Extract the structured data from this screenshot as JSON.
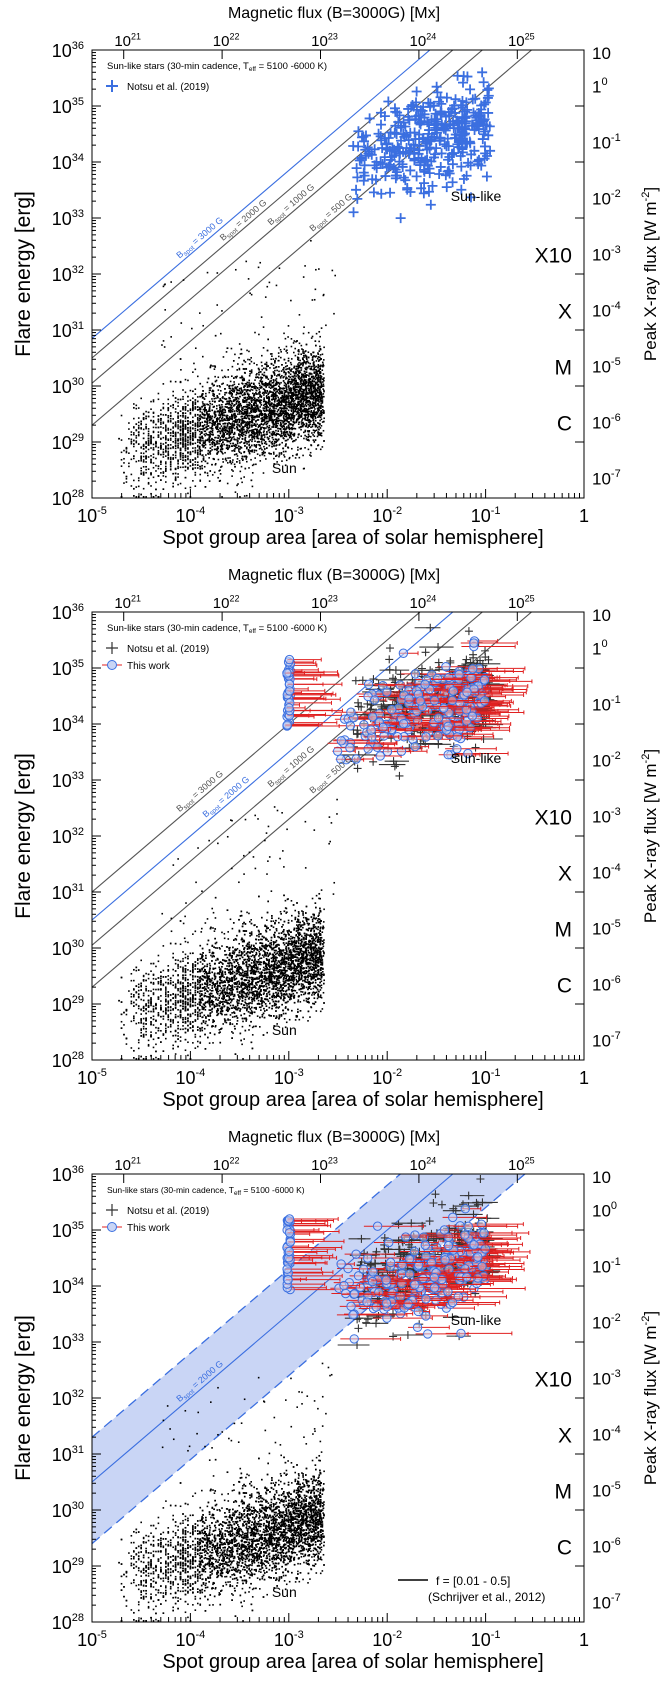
{
  "colors": {
    "blue": "#3b6fe0",
    "blue_fill": "#c9d5f5",
    "red": "#e02020",
    "black": "#000000",
    "line_gray": "#555555"
  },
  "chart_data": [
    {
      "type": "scatter",
      "xlabel": "Spot group area [area of solar hemisphere]",
      "ylabel": "Flare energy [erg]",
      "top_axis_label": "Magnetic flux (B=3000G) [Mx]",
      "right_axis_label": "Peak X-ray flux [W m⁻²]",
      "x_scale": "log",
      "y_scale": "log",
      "xlim": [
        1e-05,
        1
      ],
      "ylim": [
        1e+28,
        1e+36
      ],
      "x_ticks": [
        {
          "base": "10",
          "exp": "-5"
        },
        {
          "base": "10",
          "exp": "-4"
        },
        {
          "base": "10",
          "exp": "-3"
        },
        {
          "base": "10",
          "exp": "-2"
        },
        {
          "base": "10",
          "exp": "-1"
        },
        {
          "base": "1",
          "exp": ""
        }
      ],
      "y_ticks": [
        {
          "base": "10",
          "exp": "28"
        },
        {
          "base": "10",
          "exp": "29"
        },
        {
          "base": "10",
          "exp": "30"
        },
        {
          "base": "10",
          "exp": "31"
        },
        {
          "base": "10",
          "exp": "32"
        },
        {
          "base": "10",
          "exp": "33"
        },
        {
          "base": "10",
          "exp": "34"
        },
        {
          "base": "10",
          "exp": "35"
        },
        {
          "base": "10",
          "exp": "36"
        }
      ],
      "top_ticks": [
        {
          "base": "10",
          "exp": "21"
        },
        {
          "base": "10",
          "exp": "22"
        },
        {
          "base": "10",
          "exp": "23"
        },
        {
          "base": "10",
          "exp": "24"
        },
        {
          "base": "10",
          "exp": "25"
        }
      ],
      "top_tick_positions": [
        2.1e-05,
        0.00021,
        0.0021,
        0.021,
        0.21
      ],
      "right_ticks": [
        {
          "base": "10",
          "exp": "-7",
          "y": 28.35
        },
        {
          "base": "10",
          "exp": "-6",
          "y": 29.35
        },
        {
          "base": "10",
          "exp": "-5",
          "y": 30.35
        },
        {
          "base": "10",
          "exp": "-4",
          "y": 31.35
        },
        {
          "base": "10",
          "exp": "-3",
          "y": 32.35
        },
        {
          "base": "10",
          "exp": "-2",
          "y": 33.35
        },
        {
          "base": "10",
          "exp": "-1",
          "y": 34.35
        },
        {
          "base": "1",
          "exp": "0",
          "y": 35.35
        },
        {
          "base": "10",
          "exp": "",
          "y": 36.35
        }
      ],
      "goes_classes": [
        {
          "label": "C",
          "y": 29.35
        },
        {
          "label": "M",
          "y": 30.35
        },
        {
          "label": "X",
          "y": 31.35
        },
        {
          "label": "X10",
          "y": 32.35
        }
      ],
      "legend_title": "Sun-like stars (30-min cadence, T_eff = 5100 -6000 K)",
      "legend_title_parts": [
        "Sun-like stars (30-min cadence, T",
        "eff",
        " = 5100 -6000 K)"
      ],
      "legend": [
        "Notsu et al. (2019)"
      ],
      "annotations": [
        {
          "text": "Sun-like",
          "x": 0.08,
          "y": 33.3
        },
        {
          "text": "Sun",
          "x": 0.0009,
          "y": 28.45
        }
      ],
      "bspot_lines": [
        {
          "prefix": "B",
          "sub": "spot",
          "suffix": " = 3000 G",
          "offset": 30.85,
          "color": "blue",
          "label_x": 0.00013
        },
        {
          "prefix": "B",
          "sub": "spot",
          "suffix": " = 2000 G",
          "offset": 30.5,
          "color": "gray",
          "label_x": 0.00036
        },
        {
          "prefix": "B",
          "sub": "spot",
          "suffix": " = 1000 G",
          "offset": 30.05,
          "color": "gray",
          "label_x": 0.0011
        },
        {
          "prefix": "B",
          "sub": "spot",
          "suffix": " = 500 G",
          "offset": 29.3,
          "color": "gray",
          "label_x": 0.0028
        }
      ],
      "notsu_style": "blue",
      "this_work": false,
      "band": false
    },
    {
      "type": "scatter",
      "xlabel": "Spot group area [area of solar hemisphere]",
      "ylabel": "Flare energy [erg]",
      "top_axis_label": "Magnetic flux (B=3000G) [Mx]",
      "right_axis_label": "Peak X-ray flux [W m⁻²]",
      "x_scale": "log",
      "y_scale": "log",
      "xlim": [
        1e-05,
        1
      ],
      "ylim": [
        1e+28,
        1e+36
      ],
      "x_ticks": [
        {
          "base": "10",
          "exp": "-5"
        },
        {
          "base": "10",
          "exp": "-4"
        },
        {
          "base": "10",
          "exp": "-3"
        },
        {
          "base": "10",
          "exp": "-2"
        },
        {
          "base": "10",
          "exp": "-1"
        },
        {
          "base": "1",
          "exp": ""
        }
      ],
      "y_ticks": [
        {
          "base": "10",
          "exp": "28"
        },
        {
          "base": "10",
          "exp": "29"
        },
        {
          "base": "10",
          "exp": "30"
        },
        {
          "base": "10",
          "exp": "31"
        },
        {
          "base": "10",
          "exp": "32"
        },
        {
          "base": "10",
          "exp": "33"
        },
        {
          "base": "10",
          "exp": "34"
        },
        {
          "base": "10",
          "exp": "35"
        },
        {
          "base": "10",
          "exp": "36"
        }
      ],
      "top_ticks": [
        {
          "base": "10",
          "exp": "21"
        },
        {
          "base": "10",
          "exp": "22"
        },
        {
          "base": "10",
          "exp": "23"
        },
        {
          "base": "10",
          "exp": "24"
        },
        {
          "base": "10",
          "exp": "25"
        }
      ],
      "top_tick_positions": [
        2.1e-05,
        0.00021,
        0.0021,
        0.021,
        0.21
      ],
      "right_ticks": [
        {
          "base": "10",
          "exp": "-7",
          "y": 28.35
        },
        {
          "base": "10",
          "exp": "-6",
          "y": 29.35
        },
        {
          "base": "10",
          "exp": "-5",
          "y": 30.35
        },
        {
          "base": "10",
          "exp": "-4",
          "y": 31.35
        },
        {
          "base": "10",
          "exp": "-3",
          "y": 32.35
        },
        {
          "base": "10",
          "exp": "-2",
          "y": 33.35
        },
        {
          "base": "10",
          "exp": "-1",
          "y": 34.35
        },
        {
          "base": "1",
          "exp": "0",
          "y": 35.35
        },
        {
          "base": "10",
          "exp": "",
          "y": 36.35
        }
      ],
      "goes_classes": [
        {
          "label": "C",
          "y": 29.35
        },
        {
          "label": "M",
          "y": 30.35
        },
        {
          "label": "X",
          "y": 31.35
        },
        {
          "label": "X10",
          "y": 32.35
        }
      ],
      "legend_title": "Sun-like stars (30-min cadence, T_eff = 5100 -6000 K)",
      "legend_title_parts": [
        "Sun-like stars (30-min cadence, T",
        "eff",
        " = 5100 -6000 K)"
      ],
      "legend": [
        "Notsu et al. (2019)",
        "This work"
      ],
      "annotations": [
        {
          "text": "Sun-like",
          "x": 0.08,
          "y": 33.3
        },
        {
          "text": "Sun",
          "x": 0.0009,
          "y": 28.45
        }
      ],
      "bspot_lines": [
        {
          "prefix": "B",
          "sub": "spot",
          "suffix": " = 3000 G",
          "offset": 31.0,
          "color": "gray",
          "label_x": 0.00013
        },
        {
          "prefix": "B",
          "sub": "spot",
          "suffix": " = 2000 G",
          "offset": 30.5,
          "color": "blue",
          "label_x": 0.00024
        },
        {
          "prefix": "B",
          "sub": "spot",
          "suffix": " = 1000 G",
          "offset": 30.05,
          "color": "gray",
          "label_x": 0.0011
        },
        {
          "prefix": "B",
          "sub": "spot",
          "suffix": " = 500 G",
          "offset": 29.3,
          "color": "gray",
          "label_x": 0.0028
        }
      ],
      "notsu_style": "gray",
      "this_work": true,
      "band": false
    },
    {
      "type": "scatter",
      "xlabel": "Spot group area [area of solar hemisphere]",
      "ylabel": "Flare energy [erg]",
      "top_axis_label": "Magnetic flux (B=3000G) [Mx]",
      "right_axis_label": "Peak X-ray flux [W m⁻²]",
      "x_scale": "log",
      "y_scale": "log",
      "xlim": [
        1e-05,
        1
      ],
      "ylim": [
        1e+28,
        1e+36
      ],
      "x_ticks": [
        {
          "base": "10",
          "exp": "-5"
        },
        {
          "base": "10",
          "exp": "-4"
        },
        {
          "base": "10",
          "exp": "-3"
        },
        {
          "base": "10",
          "exp": "-2"
        },
        {
          "base": "10",
          "exp": "-1"
        },
        {
          "base": "1",
          "exp": ""
        }
      ],
      "y_ticks": [
        {
          "base": "10",
          "exp": "28"
        },
        {
          "base": "10",
          "exp": "29"
        },
        {
          "base": "10",
          "exp": "30"
        },
        {
          "base": "10",
          "exp": "31"
        },
        {
          "base": "10",
          "exp": "32"
        },
        {
          "base": "10",
          "exp": "33"
        },
        {
          "base": "10",
          "exp": "34"
        },
        {
          "base": "10",
          "exp": "35"
        },
        {
          "base": "10",
          "exp": "36"
        }
      ],
      "top_ticks": [
        {
          "base": "10",
          "exp": "21"
        },
        {
          "base": "10",
          "exp": "22"
        },
        {
          "base": "10",
          "exp": "23"
        },
        {
          "base": "10",
          "exp": "24"
        },
        {
          "base": "10",
          "exp": "25"
        }
      ],
      "top_tick_positions": [
        2.1e-05,
        0.00021,
        0.0021,
        0.021,
        0.21
      ],
      "right_ticks": [
        {
          "base": "10",
          "exp": "-7",
          "y": 28.35
        },
        {
          "base": "10",
          "exp": "-6",
          "y": 29.35
        },
        {
          "base": "10",
          "exp": "-5",
          "y": 30.35
        },
        {
          "base": "10",
          "exp": "-4",
          "y": 31.35
        },
        {
          "base": "10",
          "exp": "-3",
          "y": 32.35
        },
        {
          "base": "10",
          "exp": "-2",
          "y": 33.35
        },
        {
          "base": "10",
          "exp": "-1",
          "y": 34.35
        },
        {
          "base": "10",
          "exp": "0",
          "y": 35.35
        },
        {
          "base": "10",
          "exp": "",
          "y": 36.35
        }
      ],
      "goes_classes": [
        {
          "label": "C",
          "y": 29.35
        },
        {
          "label": "M",
          "y": 30.35
        },
        {
          "label": "X",
          "y": 31.35
        },
        {
          "label": "X10",
          "y": 32.35
        }
      ],
      "legend_title": "Sun-like stars (30-min cadence, T_eff = 5100 -6000 K)",
      "legend_title_parts": [
        "Sun-like stars (30-min cadence, T",
        "eff",
        " = 5100 -6000 K)"
      ],
      "legend": [
        "Notsu et al. (2019)",
        "This work"
      ],
      "annotations": [
        {
          "text": "Sun-like",
          "x": 0.08,
          "y": 33.3
        },
        {
          "text": "Sun",
          "x": 0.0009,
          "y": 28.45
        }
      ],
      "bspot_lines": [
        {
          "prefix": "B",
          "sub": "spot",
          "suffix": " = 2000 G",
          "offset": 30.5,
          "color": "blue",
          "label_x": 0.00013
        }
      ],
      "notsu_style": "gray",
      "this_work": true,
      "band": true,
      "band_offsets": [
        29.4,
        31.3
      ],
      "band_legend": [
        "f = [0.01 - 0.5]",
        "(Schrijver et al., 2012)"
      ]
    }
  ]
}
